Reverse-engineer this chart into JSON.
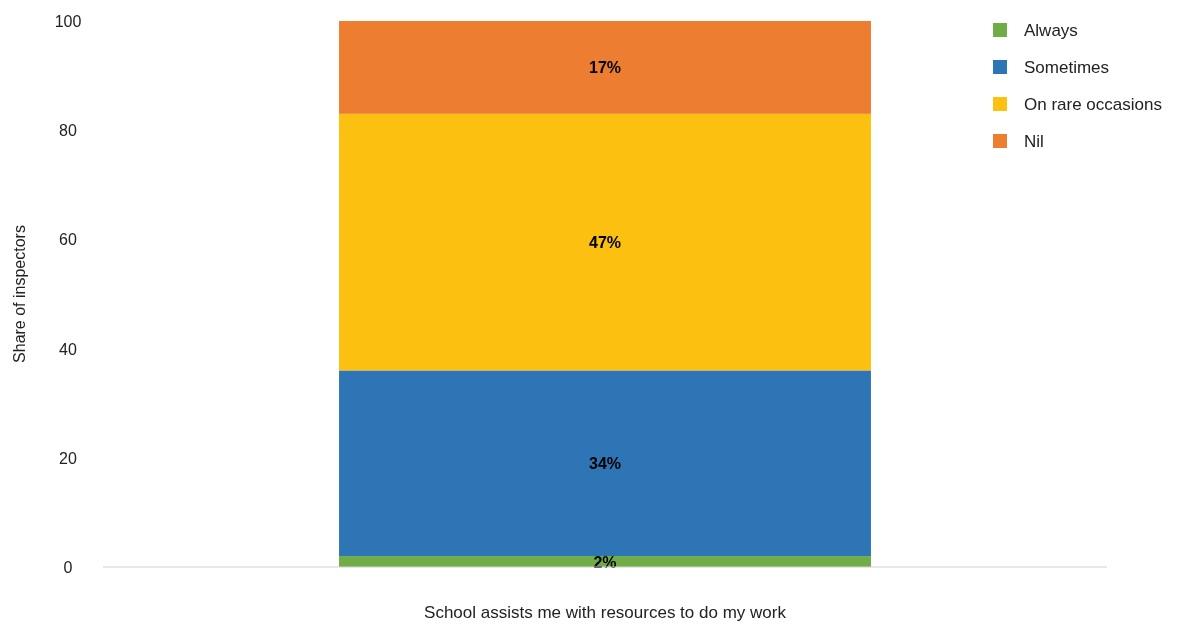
{
  "chart_data": {
    "type": "bar",
    "stacked": true,
    "ylabel": "Share of inspectors",
    "categories": [
      "School assists me with resources to do my work"
    ],
    "series": [
      {
        "name": "Always",
        "color": "#70ad47",
        "values": [
          2
        ],
        "value_labels": [
          "2%"
        ]
      },
      {
        "name": "Sometimes",
        "color": "#2e75b6",
        "values": [
          34
        ],
        "value_labels": [
          "34%"
        ]
      },
      {
        "name": "On rare occasions",
        "color": "#fbc010",
        "values": [
          47
        ],
        "value_labels": [
          "47%"
        ]
      },
      {
        "name": "Nil",
        "color": "#ed7d31",
        "values": [
          17
        ],
        "value_labels": [
          "17%"
        ]
      }
    ],
    "ylim": [
      0,
      100
    ],
    "yticks": [
      0,
      20,
      40,
      60,
      80,
      100
    ],
    "legend": "top right"
  }
}
